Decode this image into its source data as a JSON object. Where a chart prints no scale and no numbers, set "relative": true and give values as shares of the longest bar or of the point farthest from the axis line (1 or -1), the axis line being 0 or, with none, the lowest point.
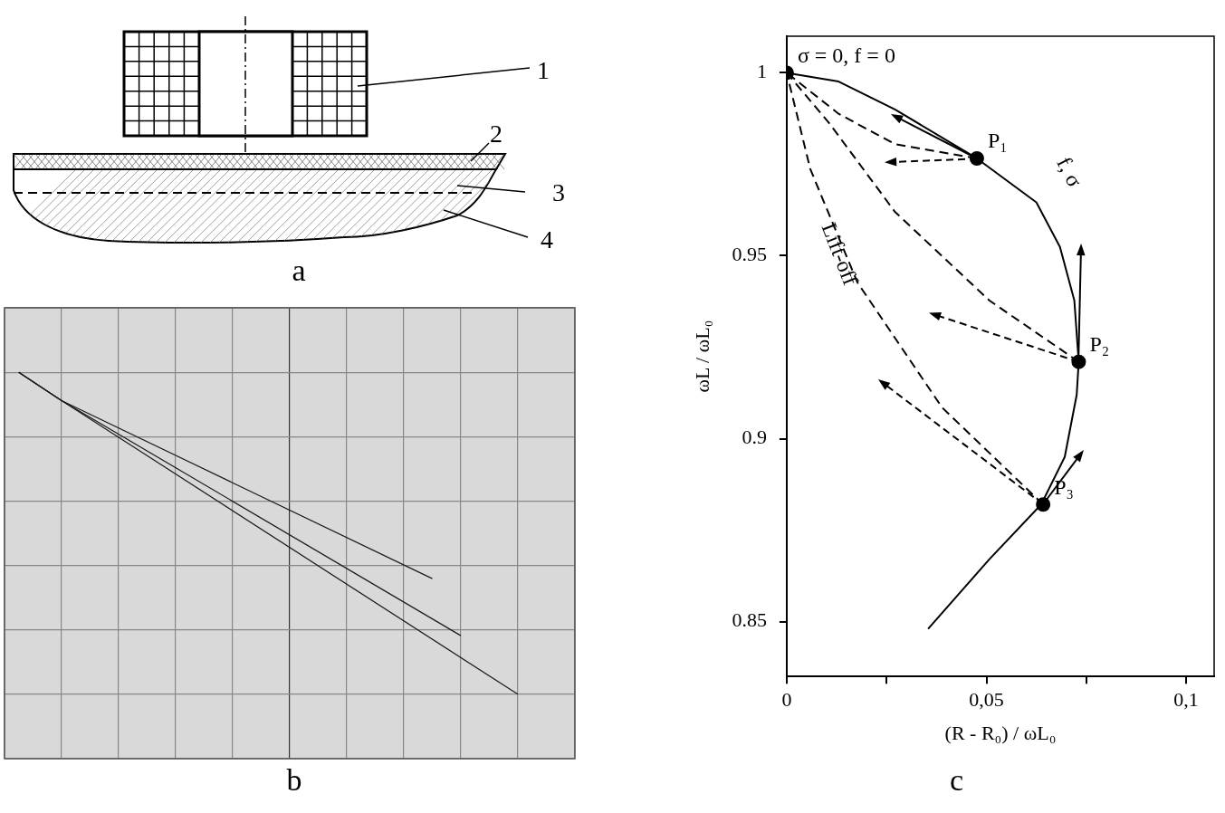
{
  "chart_data": [
    {
      "type": "other",
      "title": "a",
      "annotations": [
        "1",
        "2",
        "3",
        "4"
      ]
    },
    {
      "type": "line",
      "title": "b",
      "relative": true,
      "grid": true,
      "tick_labels": false,
      "legend": false,
      "categories": [
        null,
        null,
        null,
        null,
        null,
        null,
        null,
        null,
        null,
        null,
        null,
        null,
        null,
        null,
        null,
        null,
        null,
        null,
        null,
        null,
        null,
        null,
        null,
        null,
        null,
        null,
        null,
        null,
        null,
        null,
        null,
        null,
        null,
        null,
        null,
        null,
        null,
        null,
        null,
        null,
        null
      ],
      "series": [
        {
          "color": "#1a1a1a",
          "values": [
            null,
            1,
            null,
            null,
            0.912,
            null,
            null,
            null,
            null,
            null,
            null,
            null,
            null,
            null,
            null,
            null,
            null,
            null,
            null,
            null,
            null,
            null,
            null,
            null,
            null,
            null,
            null,
            null,
            null,
            null,
            0.359,
            null,
            null,
            null,
            null,
            null,
            null,
            null,
            null,
            null,
            null
          ]
        },
        {
          "color": "#1a1a1a",
          "values": [
            null,
            1,
            null,
            null,
            0.912,
            null,
            null,
            null,
            null,
            null,
            null,
            null,
            null,
            null,
            null,
            null,
            null,
            null,
            null,
            null,
            null,
            null,
            null,
            null,
            null,
            null,
            null,
            null,
            null,
            null,
            null,
            null,
            0.182,
            null,
            null,
            null,
            null,
            null,
            null,
            null,
            null
          ]
        },
        {
          "color": "#1a1a1a",
          "values": [
            null,
            1,
            null,
            null,
            0.912,
            null,
            null,
            null,
            null,
            null,
            null,
            null,
            null,
            null,
            null,
            null,
            null,
            null,
            null,
            null,
            null,
            null,
            null,
            null,
            null,
            null,
            null,
            null,
            null,
            null,
            null,
            null,
            null,
            null,
            null,
            null,
            0,
            null,
            null,
            null,
            null
          ]
        }
      ]
    },
    {
      "type": "line",
      "title": "c",
      "xlabel": "(R - R₀) / ωL₀",
      "ylabel": "ωL / ωL₀",
      "grid": false,
      "legend": false,
      "xlim": [
        0,
        0.107
      ],
      "xticks": [
        0,
        {
          "value": 0.025,
          "label": null
        },
        {
          "value": 0.05,
          "label": "0,05"
        },
        {
          "value": 0.075,
          "label": null
        },
        {
          "value": 0.1,
          "label": "0,1"
        }
      ],
      "ylim": [
        0.835,
        1.01
      ],
      "yticks": [
        0.85,
        0.9,
        0.95,
        1
      ],
      "annotations": [
        {
          "text": "σ = 0, f = 0",
          "x": 0,
          "y": 1
        },
        {
          "text": "P₁",
          "x": 0.0476,
          "y": 0.9766
        },
        {
          "text": "P₂",
          "x": 0.0731,
          "y": 0.921
        },
        {
          "text": "P₃",
          "x": 0.0642,
          "y": 0.882
        },
        "f, σ",
        "Lift-off"
      ],
      "series": [
        {
          "type": "line",
          "color": "#000000",
          "marker": "none",
          "line_style": "solid",
          "x": [
            0.0354,
            0.0507,
            0.0637,
            0.0696,
            0.0726,
            0.0731,
            0.072,
            0.0684,
            0.0625,
            0.0476,
            0.0271,
            0.013,
            0
          ],
          "values": [
            0.848,
            0.867,
            0.882,
            0.895,
            0.912,
            0.921,
            0.9378,
            0.9524,
            0.9646,
            0.9766,
            0.99,
            0.9976,
            1
          ]
        },
        {
          "type": "line",
          "color": "#000000",
          "marker": "none",
          "line_style": "dashed",
          "x": [
            0.0476,
            0.0271,
            0.013,
            0
          ],
          "values": [
            0.9766,
            0.9805,
            0.9888,
            1
          ]
        },
        {
          "type": "line",
          "color": "#000000",
          "marker": "none",
          "line_style": "dashed",
          "x": [
            0.0731,
            0.0507,
            0.0271,
            0.0106,
            0
          ],
          "values": [
            0.921,
            0.9378,
            0.962,
            0.9863,
            1
          ]
        },
        {
          "type": "line",
          "color": "#000000",
          "marker": "none",
          "line_style": "dashed",
          "x": [
            0.0642,
            0.0389,
            0.0177,
            0.0059,
            0
          ],
          "values": [
            0.882,
            0.9085,
            0.9427,
            0.9737,
            1
          ]
        },
        {
          "type": "scatter",
          "color": "#000000",
          "marker": "circle",
          "x": [
            0,
            0.0476,
            0.0731,
            0.0642
          ],
          "values": [
            1,
            0.9766,
            0.921,
            0.882
          ]
        }
      ]
    }
  ]
}
